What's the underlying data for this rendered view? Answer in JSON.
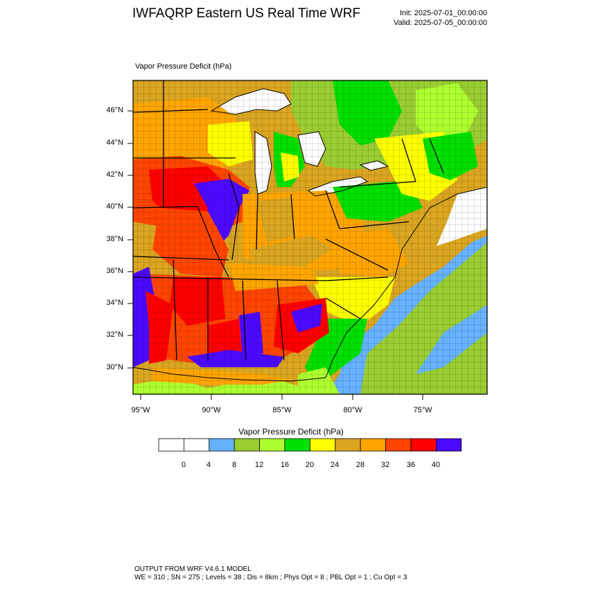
{
  "header": {
    "title": "IWFAQRP Eastern US Real Time WRF",
    "init": "Init: 2025-07-01_00:00:00",
    "valid": "Valid: 2025-07-05_00:00:00"
  },
  "map": {
    "label": "Vapor Pressure Deficit   (hPa)",
    "lat_ticks": [
      "46°N",
      "44°N",
      "42°N",
      "40°N",
      "38°N",
      "36°N",
      "34°N",
      "32°N",
      "30°N"
    ],
    "lon_ticks": [
      "95°W",
      "90°W",
      "85°W",
      "80°W",
      "75°W"
    ],
    "colors": {
      "water": "#66b2ff",
      "low": "#9acd32",
      "mid_low": "#adff2f",
      "green": "#00e000",
      "yellow": "#ffff00",
      "gold": "#daa520",
      "orange": "#ffa500",
      "orange_red": "#ff4500",
      "red": "#ff0000",
      "blue_violet": "#4b0aff"
    }
  },
  "colorbar": {
    "title": "Vapor Pressure Deficit  (hPa)",
    "colors": [
      "#ffffff",
      "#ffffff",
      "#66b2ff",
      "#9acd32",
      "#adff2f",
      "#00e000",
      "#ffff00",
      "#daa520",
      "#ffa500",
      "#ff4500",
      "#ff0000",
      "#4b0aff"
    ],
    "labels": [
      "0",
      "4",
      "8",
      "12",
      "16",
      "20",
      "24",
      "28",
      "32",
      "36",
      "40"
    ]
  },
  "footer": {
    "line1": "OUTPUT FROM WRF V4.6.1 MODEL",
    "line2": "WE = 310 ; SN = 275 ; Levels = 38 ; Dis = 8km ; Phys Opt = 8 ; PBL Opt = 1 ; Cu Opt = 3"
  }
}
